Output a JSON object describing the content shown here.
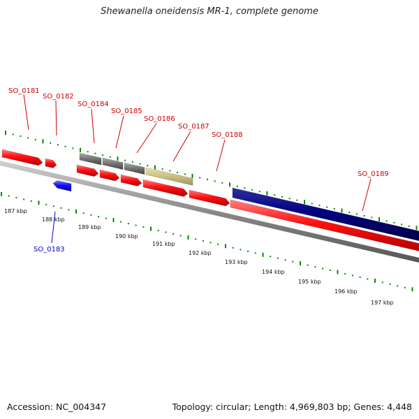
{
  "title": "Shewanella oneidensis MR-1, complete genome",
  "footer": {
    "accession": "Accession: NC_004347",
    "summary": "Topology: circular; Length: 4,969,803 bp; Genes: 4,448"
  },
  "colors": {
    "forward_gene": "#ff0000",
    "reverse_gene": "#0000ff",
    "forward_label": "#cc0000",
    "reverse_label": "#0000cc",
    "other_feature": "#777777",
    "pseudo_feature": "#bdb76b",
    "large_feature": "#000080",
    "tick": "#008800",
    "backbone": "#888888"
  },
  "scale": {
    "unit": "kbp",
    "ticks": [
      "187 kbp",
      "188 kbp",
      "189 kbp",
      "190 kbp",
      "191 kbp",
      "192 kbp",
      "193 kbp",
      "194 kbp",
      "195 kbp",
      "196 kbp",
      "197 kbp"
    ]
  },
  "genes": [
    {
      "label": "SO_0181",
      "strand": "forward"
    },
    {
      "label": "SO_0182",
      "strand": "forward"
    },
    {
      "label": "SO_0183",
      "strand": "reverse"
    },
    {
      "label": "SO_0184",
      "strand": "forward"
    },
    {
      "label": "SO_0185",
      "strand": "forward"
    },
    {
      "label": "SO_0186",
      "strand": "forward"
    },
    {
      "label": "SO_0187",
      "strand": "forward"
    },
    {
      "label": "SO_0188",
      "strand": "forward"
    },
    {
      "label": "SO_0189",
      "strand": "forward"
    }
  ]
}
